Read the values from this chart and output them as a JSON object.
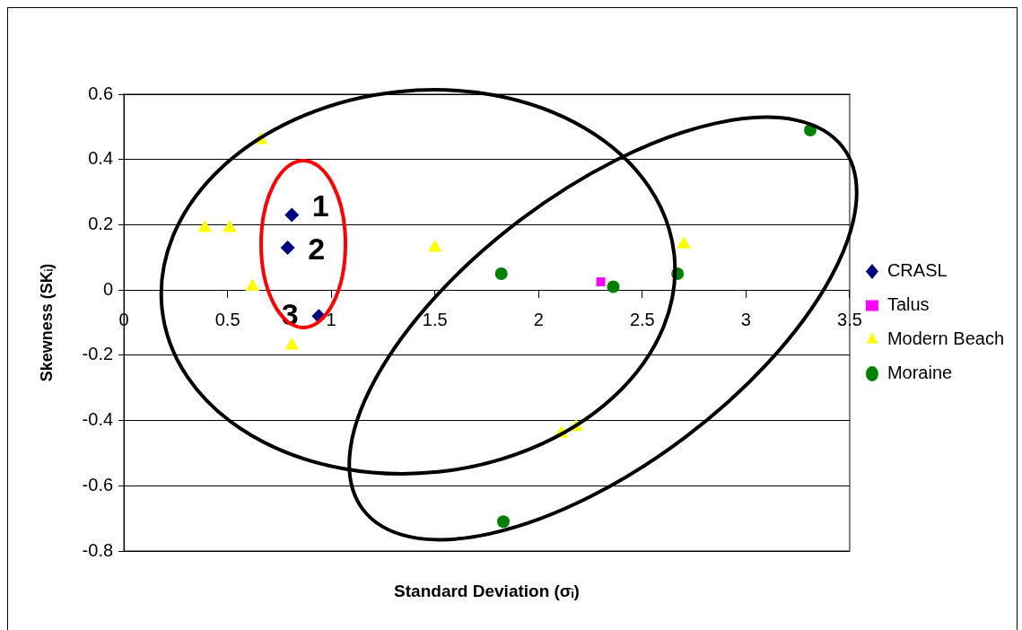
{
  "chart_data": {
    "type": "scatter",
    "xlabel": "Standard Deviation (σᵢ)",
    "ylabel": "Skewness (SKᵢ)",
    "xlim": [
      0,
      3.5
    ],
    "xticks": [
      0,
      0.5,
      1,
      1.5,
      2,
      2.5,
      3,
      3.5
    ],
    "ylim": [
      -0.8,
      0.6
    ],
    "yticks": [
      -0.8,
      -0.6,
      -0.4,
      -0.2,
      0,
      0.2,
      0.4,
      0.6
    ],
    "grid": "y",
    "legend": "right",
    "series": [
      {
        "name": "CRASL",
        "color": "#000080",
        "marker": "diamond",
        "x": [
          0.81,
          0.79,
          0.94
        ],
        "values": [
          0.23,
          0.13,
          -0.08
        ]
      },
      {
        "name": "Talus",
        "color": "#ff00ff",
        "marker": "square",
        "x": [
          2.3
        ],
        "values": [
          0.025
        ]
      },
      {
        "name": "Modern Beach",
        "color": "#ffff00",
        "marker": "triangle",
        "x": [
          0.66,
          0.39,
          0.51,
          0.62,
          0.81,
          1.5,
          2.7,
          2.11,
          2.18
        ],
        "values": [
          0.46,
          0.19,
          0.19,
          0.01,
          -0.17,
          0.13,
          0.14,
          -0.44,
          -0.42
        ]
      },
      {
        "name": "Moraine",
        "color": "#008000",
        "marker": "circle",
        "x": [
          1.82,
          2.36,
          2.67,
          3.31,
          1.83
        ],
        "values": [
          0.05,
          0.01,
          0.05,
          0.49,
          -0.71
        ]
      }
    ],
    "annotations": [
      {
        "text": "1",
        "x": 0.81,
        "y": 0.23
      },
      {
        "text": "2",
        "x": 0.79,
        "y": 0.13
      },
      {
        "text": "3",
        "x": 0.94,
        "y": -0.08
      }
    ]
  }
}
